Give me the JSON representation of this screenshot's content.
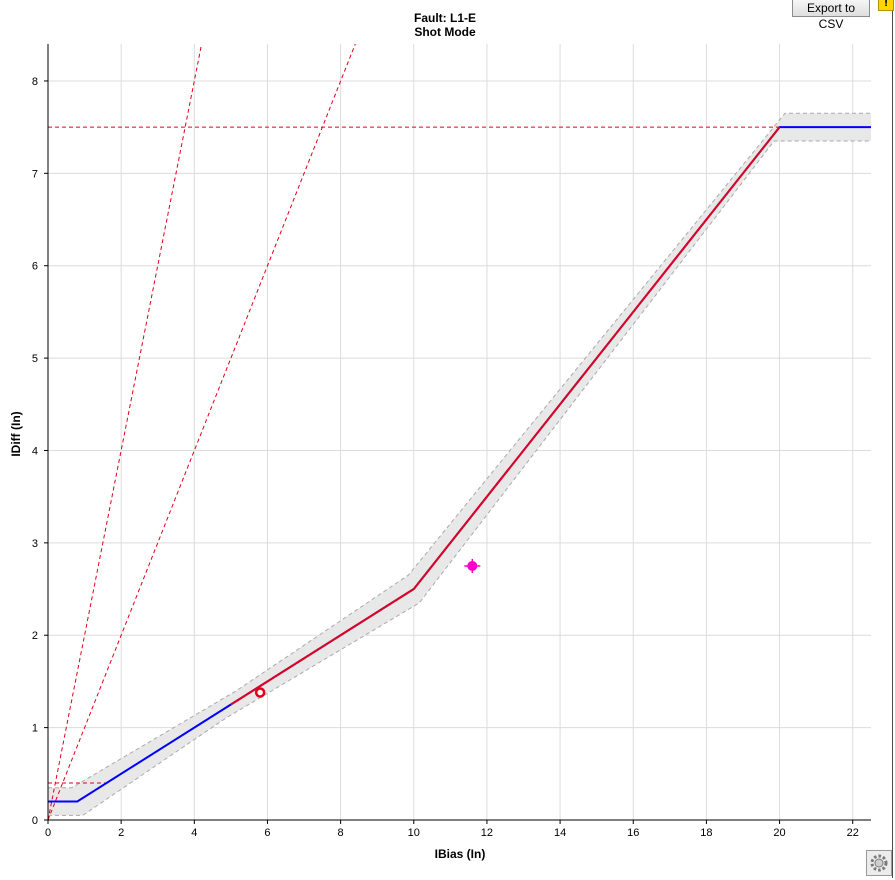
{
  "toolbar": {
    "export_label": "Export to CSV",
    "warning_glyph": "!"
  },
  "icons": {
    "settings": "gear-icon",
    "warning": "warning-icon"
  },
  "chart_data": {
    "type": "line",
    "title": "Fault: L1-E",
    "subtitle": "Shot Mode",
    "xlabel": "IBias (In)",
    "ylabel": "IDiff (In)",
    "xlim": [
      0,
      22.5
    ],
    "ylim": [
      0,
      8.4
    ],
    "x_ticks": [
      0,
      2,
      4,
      6,
      8,
      10,
      12,
      14,
      16,
      18,
      20,
      22
    ],
    "y_ticks": [
      0,
      1,
      2,
      3,
      4,
      5,
      6,
      7,
      8
    ],
    "grid": true,
    "colors": {
      "blue": "#0000ff",
      "red": "#e0001b",
      "band": "#e8e8e8",
      "band_edge": "#aaaaaa",
      "test_marker": "#ff00cc"
    },
    "characteristic": [
      [
        0,
        0.2
      ],
      [
        0.8,
        0.2
      ],
      [
        5,
        1.25
      ],
      [
        10,
        2.5
      ],
      [
        20,
        7.5
      ],
      [
        22.5,
        7.5
      ]
    ],
    "highlighted": [
      [
        5,
        1.25
      ],
      [
        10,
        2.5
      ],
      [
        20,
        7.5
      ]
    ],
    "tolerance": 0.15,
    "reference_lines": [
      {
        "style": "dashed",
        "points": [
          [
            0,
            7.5
          ],
          [
            22.5,
            7.5
          ]
        ]
      },
      {
        "style": "dashed",
        "points": [
          [
            0,
            0
          ],
          [
            8.4,
            8.4
          ]
        ]
      },
      {
        "style": "dashed",
        "points": [
          [
            0,
            0
          ],
          [
            7.5,
            15
          ]
        ]
      },
      {
        "style": "dashed",
        "points": [
          [
            0,
            0.4
          ],
          [
            1.6,
            0.4
          ]
        ]
      }
    ],
    "points": [
      {
        "marker": "ring",
        "x": 5.8,
        "y": 1.38
      },
      {
        "marker": "cross",
        "x": 11.6,
        "y": 2.75
      }
    ]
  }
}
